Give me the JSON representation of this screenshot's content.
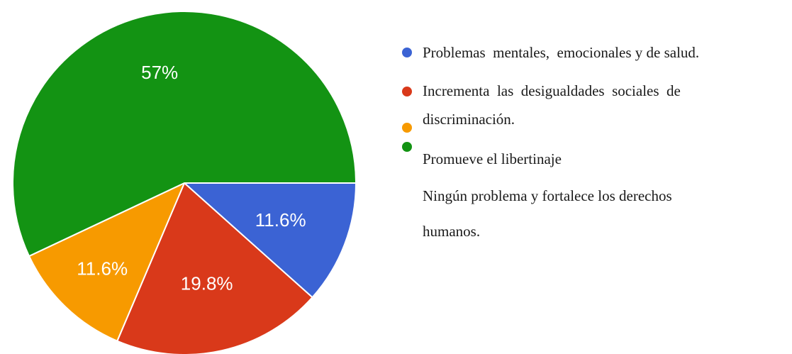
{
  "chart_data": {
    "type": "pie",
    "slices": [
      {
        "value": 11.6,
        "label": "11.6%",
        "color": "#3b63d4"
      },
      {
        "value": 19.8,
        "label": "19.8%",
        "color": "#d9391a"
      },
      {
        "value": 11.6,
        "label": "11.6%",
        "color": "#f79a00"
      },
      {
        "value": 57.0,
        "label": "57%",
        "color": "#139313"
      }
    ],
    "legend": {
      "placement": "right",
      "markers": [
        {
          "color": "#3b63d4"
        },
        {
          "color": "#d9391a"
        },
        {
          "color": "#f79a00"
        },
        {
          "color": "#139313"
        }
      ],
      "lines": [
        "Problemas  mentales,  emocionales y de salud.",
        "Incrementa  las  desigualdades  sociales  de",
        "discriminación.",
        "Promueve el libertinaje",
        "Ningún problema y fortalece los derechos",
        "humanos."
      ]
    }
  }
}
